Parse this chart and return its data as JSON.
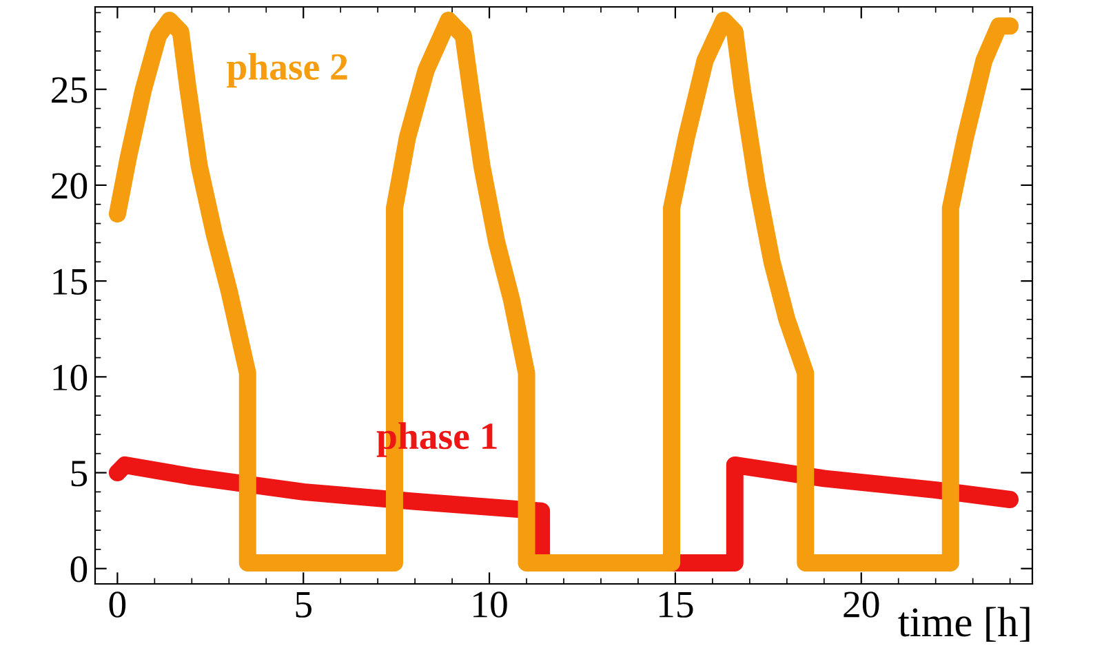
{
  "chart_data": {
    "type": "line",
    "xlabel": "time [h]",
    "xlim": [
      -0.6,
      24.6
    ],
    "ylim": [
      -0.8,
      29.3
    ],
    "xticks": [
      0,
      5,
      10,
      15,
      20
    ],
    "yticks": [
      0,
      5,
      10,
      15,
      20,
      25
    ],
    "grid": false,
    "legend": false,
    "line_style": "solid",
    "series": [
      {
        "name": "phase 1",
        "color": "#ee1515",
        "x": [
          0,
          0.2,
          2,
          5,
          8,
          11.4,
          11.4,
          16.6,
          16.6,
          19,
          22,
          24
        ],
        "values": [
          5.0,
          5.4,
          4.8,
          4.0,
          3.5,
          3.0,
          0.3,
          0.3,
          5.4,
          4.7,
          4.1,
          3.6
        ]
      },
      {
        "name": "phase 2",
        "color": "#f59d0e",
        "x": [
          0,
          0.3,
          0.7,
          1.1,
          1.4,
          1.7,
          1.9,
          2.2,
          2.6,
          3.0,
          3.5,
          3.5,
          7.45,
          7.45,
          7.8,
          8.3,
          8.9,
          9.3,
          9.5,
          9.8,
          10.2,
          10.6,
          11.0,
          11.0,
          14.9,
          14.9,
          15.3,
          15.8,
          16.3,
          16.6,
          16.8,
          17.2,
          17.6,
          18.0,
          18.5,
          18.5,
          22.4,
          22.4,
          22.8,
          23.3,
          23.7,
          24.0
        ],
        "values": [
          18.5,
          21.5,
          25,
          27.8,
          28.6,
          28,
          25,
          21,
          17.5,
          14.5,
          10.2,
          0.3,
          0.3,
          18.8,
          22.5,
          26,
          28.6,
          27.8,
          25,
          21,
          17,
          14,
          10.2,
          0.3,
          0.3,
          18.8,
          22.5,
          26.5,
          28.6,
          28,
          25,
          20,
          16,
          13,
          10.2,
          0.3,
          0.3,
          18.8,
          22.5,
          26.5,
          28.3,
          28.3
        ]
      }
    ]
  }
}
